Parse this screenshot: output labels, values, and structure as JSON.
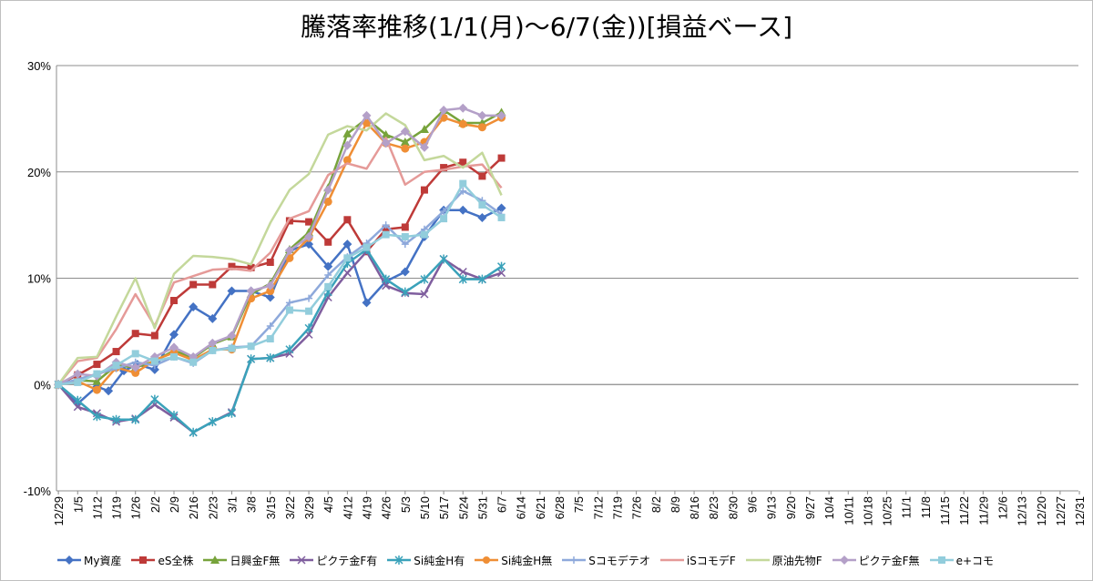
{
  "chart_data": {
    "type": "line",
    "title": "騰落率推移(1/1(月)～6/7(金))[損益ベース]",
    "xlabel": "",
    "ylabel": "",
    "ylim": [
      -10,
      30
    ],
    "yticks": [
      -10,
      0,
      10,
      20,
      30
    ],
    "ytick_labels": [
      "-10%",
      "0%",
      "10%",
      "20%",
      "30%"
    ],
    "grid": true,
    "legend_position": "bottom",
    "x_labels": [
      "12/29",
      "1/5",
      "1/12",
      "1/19",
      "1/26",
      "2/2",
      "2/9",
      "2/16",
      "2/23",
      "3/1",
      "3/8",
      "3/15",
      "3/22",
      "3/29",
      "4/5",
      "4/12",
      "4/19",
      "4/26",
      "5/3",
      "5/10",
      "5/17",
      "5/24",
      "5/31",
      "6/7",
      "6/14",
      "6/21",
      "6/28",
      "7/5",
      "7/12",
      "7/19",
      "7/26",
      "8/2",
      "8/9",
      "8/16",
      "8/23",
      "8/30",
      "9/6",
      "9/13",
      "9/20",
      "9/27",
      "10/4",
      "10/11",
      "10/18",
      "10/25",
      "11/1",
      "11/8",
      "11/15",
      "11/22",
      "11/29",
      "12/6",
      "12/13",
      "12/20",
      "12/27",
      "12/31"
    ],
    "x_index_start": -0.1,
    "x_index_end": 52.95,
    "series": [
      {
        "name": "My資産",
        "color": "#4472c4",
        "marker": "diamond",
        "x": [
          0,
          1,
          2,
          2.6,
          3.4,
          4.1,
          5,
          6,
          7,
          8,
          9,
          10,
          11,
          12,
          13,
          14,
          15,
          16,
          17,
          18,
          19,
          20,
          21,
          22,
          23
        ],
        "values": [
          0,
          -1.8,
          -0.2,
          -0.6,
          1.3,
          1.9,
          1.4,
          4.7,
          7.3,
          6.2,
          8.8,
          8.8,
          8.2,
          12.6,
          13.2,
          11.1,
          13.2,
          7.7,
          9.7,
          10.6,
          13.9,
          16.4,
          16.4,
          15.7,
          16.6
        ]
      },
      {
        "name": "eS全株",
        "color": "#be3a38",
        "marker": "square",
        "x": [
          0,
          1,
          2,
          3,
          4,
          5,
          6,
          7,
          8,
          9,
          10,
          11,
          12,
          13,
          14,
          15,
          16,
          17,
          18,
          19,
          20,
          21,
          22,
          23
        ],
        "values": [
          0,
          0.9,
          1.9,
          3.1,
          4.8,
          4.6,
          7.9,
          9.4,
          9.4,
          11.1,
          11.0,
          11.5,
          15.4,
          15.3,
          13.4,
          15.5,
          12.5,
          14.6,
          14.8,
          18.3,
          20.4,
          20.9,
          19.6,
          21.3
        ]
      },
      {
        "name": "日興金F無",
        "color": "#77a33b",
        "marker": "triangle",
        "x": [
          0,
          1,
          2,
          3,
          4,
          5,
          6,
          7,
          8,
          9,
          10,
          11,
          12,
          13,
          14,
          15,
          16,
          17,
          18,
          19,
          20,
          21,
          22,
          23
        ],
        "values": [
          0,
          0.4,
          0.3,
          1.8,
          1.6,
          2.2,
          3.2,
          2.5,
          3.8,
          4.5,
          8.5,
          9.5,
          12.7,
          14.3,
          18.5,
          23.6,
          25.0,
          23.5,
          22.8,
          24.0,
          25.8,
          24.6,
          24.6,
          25.6
        ]
      },
      {
        "name": "ピクテ金F有",
        "color": "#7f5e9e",
        "marker": "x",
        "x": [
          0,
          1,
          2,
          3,
          4,
          5,
          6,
          7,
          8,
          9,
          10,
          11,
          12,
          13,
          14,
          15,
          16,
          17,
          18,
          19,
          20,
          21,
          22,
          23
        ],
        "values": [
          0,
          -2.1,
          -2.7,
          -3.5,
          -3.2,
          -1.9,
          -3.1,
          -4.5,
          -3.5,
          -2.6,
          2.4,
          2.5,
          2.9,
          4.7,
          8.2,
          10.5,
          12.5,
          9.3,
          8.6,
          8.5,
          11.8,
          10.6,
          9.9,
          10.5
        ]
      },
      {
        "name": "Si純金H有",
        "color": "#3aa2ba",
        "marker": "star",
        "x": [
          0,
          1,
          2,
          3,
          4,
          5,
          6,
          7,
          8,
          9,
          10,
          11,
          12,
          13,
          14,
          15,
          16,
          17,
          18,
          19,
          20,
          21,
          22,
          23
        ],
        "values": [
          0,
          -1.5,
          -3.0,
          -3.3,
          -3.3,
          -1.4,
          -2.9,
          -4.5,
          -3.5,
          -2.7,
          2.4,
          2.5,
          3.3,
          5.3,
          8.7,
          11.4,
          12.7,
          9.9,
          8.7,
          9.9,
          11.8,
          9.9,
          9.9,
          11.1
        ]
      },
      {
        "name": "Si純金H無",
        "color": "#ef8e35",
        "marker": "circle",
        "x": [
          0,
          1,
          2,
          3,
          4,
          5,
          6,
          7,
          8,
          9,
          10,
          11,
          12,
          13,
          14,
          15,
          16,
          17,
          18,
          19,
          20,
          21,
          22,
          23
        ],
        "values": [
          0,
          0.3,
          -0.5,
          1.6,
          1.1,
          2.3,
          3.0,
          2.3,
          3.3,
          3.3,
          8.1,
          8.8,
          11.9,
          13.8,
          17.2,
          21.1,
          24.6,
          22.7,
          22.2,
          22.8,
          25.1,
          24.5,
          24.2,
          25.1
        ]
      },
      {
        "name": "Sコモデテオ",
        "color": "#8ea9db",
        "marker": "plus",
        "x": [
          0,
          1,
          2,
          3,
          4,
          5,
          6,
          7,
          8,
          9,
          10,
          11,
          12,
          13,
          14,
          15,
          16,
          17,
          18,
          19,
          20,
          21,
          22,
          23
        ],
        "values": [
          0,
          0.5,
          1.0,
          1.5,
          2.1,
          1.8,
          2.6,
          2.0,
          3.2,
          3.5,
          3.6,
          5.5,
          7.7,
          8.1,
          10.3,
          12.0,
          13.3,
          15.0,
          13.2,
          14.6,
          16.3,
          18.2,
          17.3,
          16.0
        ]
      },
      {
        "name": "iSコモデF",
        "color": "#e59a98",
        "marker": "none",
        "x": [
          0,
          1,
          2,
          3,
          4,
          5,
          6,
          7,
          8,
          9,
          10,
          11,
          12,
          13,
          14,
          15,
          16,
          17,
          18,
          19,
          20,
          21,
          22,
          23
        ],
        "values": [
          0,
          2.2,
          2.5,
          5.2,
          8.5,
          5.5,
          9.6,
          10.2,
          10.8,
          10.9,
          10.7,
          12.4,
          15.6,
          16.3,
          19.7,
          20.8,
          20.3,
          23.2,
          18.8,
          20.0,
          20.2,
          20.5,
          20.7,
          18.5
        ]
      },
      {
        "name": "原油先物F",
        "color": "#c4d89b",
        "marker": "none",
        "x": [
          0,
          1,
          2,
          3,
          4,
          5,
          6,
          7,
          8,
          9,
          10,
          11,
          12,
          13,
          14,
          15,
          16,
          17,
          18,
          19,
          20,
          21,
          22,
          23
        ],
        "values": [
          0,
          2.5,
          2.6,
          6.4,
          10.0,
          5.3,
          10.4,
          12.1,
          12.0,
          11.8,
          11.3,
          15.2,
          18.3,
          19.8,
          23.5,
          24.3,
          23.9,
          25.5,
          24.4,
          21.1,
          21.5,
          20.4,
          21.8,
          17.8
        ]
      },
      {
        "name": "ピクテ金F無",
        "color": "#b4a0c8",
        "marker": "diamond",
        "x": [
          0,
          1,
          2,
          3,
          4,
          5,
          6,
          7,
          8,
          9,
          10,
          11,
          12,
          13,
          14,
          15,
          16,
          17,
          18,
          19,
          20,
          21,
          22,
          23
        ],
        "values": [
          0,
          1.0,
          0.8,
          2.1,
          1.6,
          2.6,
          3.5,
          2.6,
          3.9,
          4.6,
          8.8,
          9.3,
          12.6,
          13.9,
          18.3,
          22.5,
          25.3,
          22.7,
          23.8,
          22.3,
          25.8,
          26.0,
          25.3,
          25.3
        ]
      },
      {
        "name": "e+コモ",
        "color": "#92cddc",
        "marker": "square",
        "x": [
          0,
          1,
          2,
          3,
          4,
          5,
          6,
          7,
          8,
          9,
          10,
          11,
          12,
          13,
          14,
          15,
          16,
          17,
          18,
          19,
          20,
          21,
          22,
          23
        ],
        "values": [
          0,
          0.2,
          1.0,
          1.8,
          2.9,
          2.2,
          2.6,
          2.1,
          3.2,
          3.4,
          3.6,
          4.3,
          7.0,
          6.9,
          9.2,
          11.9,
          12.9,
          14.1,
          13.9,
          14.1,
          15.6,
          18.9,
          16.9,
          15.7
        ]
      }
    ]
  }
}
